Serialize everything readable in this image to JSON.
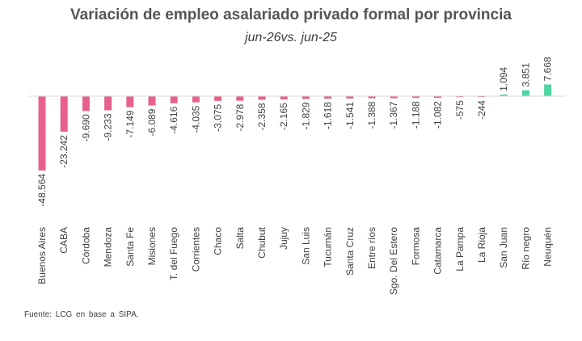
{
  "chart_data": {
    "type": "bar",
    "title": "Variación de empleo asalariado privado formal por provincia",
    "subtitle": "jun-26vs. jun-25",
    "source": "Fuente: LCG en base a SIPA.",
    "categories": [
      "Buenos Aires",
      "CABA",
      "Córdoba",
      "Mendoza",
      "Santa Fe",
      "Misiones",
      "T. del Fuego",
      "Corrientes",
      "Chaco",
      "Salta",
      "Chubut",
      "Jujuy",
      "San Luis",
      "Tucumán",
      "Santa Cruz",
      "Entre ríos",
      "Sgo. Del Estero",
      "Formosa",
      "Catamarca",
      "La Pampa",
      "La Rioja",
      "San Juan",
      "Río negro",
      "Neuquén"
    ],
    "values": [
      -48564,
      -23242,
      -9690,
      -9233,
      -7149,
      -6089,
      -4616,
      -4035,
      -3075,
      -2978,
      -2358,
      -2165,
      -1829,
      -1618,
      -1541,
      -1388,
      -1367,
      -1188,
      -1082,
      -575,
      -244,
      1094,
      3851,
      7668
    ],
    "data_labels": [
      "-48.564",
      "-23.242",
      "-9.690",
      "-9.233",
      "-7.149",
      "-6.089",
      "-4.616",
      "-4.035",
      "-3.075",
      "-2.978",
      "-2.358",
      "-2.165",
      "-1.829",
      "-1.618",
      "-1.541",
      "-1.388",
      "-1.367",
      "-1.188",
      "-1.082",
      "-575",
      "-244",
      "1.094",
      "3.851",
      "7.668"
    ],
    "colors": {
      "negative": "#e8608c",
      "positive": "#4fd3a2",
      "axis": "#d9d9d9"
    },
    "xlabel": "",
    "ylabel": "",
    "legend": "none",
    "grid": false
  }
}
